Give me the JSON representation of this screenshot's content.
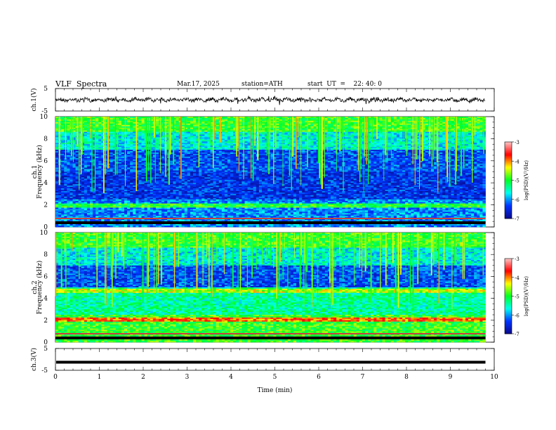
{
  "header": {
    "title": "VLF  Spectra",
    "date": "Mar.17, 2025",
    "station": "station=ATH",
    "start": "start  UT  =    22: 40: 0"
  },
  "chart_data": [
    {
      "type": "line",
      "ylabel": "ch.1(V)",
      "ylim": [
        -5,
        5
      ],
      "yticks": [
        "5",
        "-5"
      ],
      "xlim": [
        0,
        10
      ],
      "x_extent": [
        0,
        9.8
      ],
      "level": 0,
      "color": "#000000"
    },
    {
      "type": "heatmap",
      "ylabel_top": "ch.1",
      "ylabel": "Frequency  (kHz)",
      "ylim": [
        0,
        10
      ],
      "yticks": [
        "0",
        "2",
        "4",
        "6",
        "8",
        "10"
      ],
      "xlim": [
        0,
        10
      ],
      "x_extent": [
        0,
        9.8
      ],
      "colorbar": {
        "label": "log(PSD)(V²/Hz)",
        "range": [
          -7,
          -3
        ],
        "ticks": [
          "-3",
          "-4",
          "-5",
          "-6",
          "-7"
        ]
      }
    },
    {
      "type": "heatmap",
      "ylabel_top": "ch.2",
      "ylabel": "Frequency  (kHz)",
      "ylim": [
        0,
        10
      ],
      "yticks": [
        "0",
        "2",
        "4",
        "6",
        "8",
        "10"
      ],
      "xlim": [
        0,
        10
      ],
      "x_extent": [
        0,
        9.8
      ],
      "colorbar": {
        "label": "log(PSD)(V²/Hz)",
        "range": [
          -7,
          -3
        ],
        "ticks": [
          "-3",
          "-4",
          "-5",
          "-6",
          "-7"
        ]
      }
    },
    {
      "type": "line",
      "ylabel": "ch.3(V)",
      "ylim": [
        -5,
        5
      ],
      "yticks": [
        "5",
        "-5"
      ],
      "xlim": [
        0,
        10
      ],
      "x_extent": [
        0,
        9.8
      ],
      "level": -1.3,
      "color": "#000000"
    }
  ],
  "xaxis": {
    "label": "Time  (min)",
    "ticks": [
      "0",
      "1",
      "2",
      "3",
      "4",
      "5",
      "6",
      "7",
      "8",
      "9",
      "10"
    ]
  },
  "colors": {
    "colormap": [
      "#0a0a8a",
      "#0033ff",
      "#00ffee",
      "#00ff22",
      "#ffff00",
      "#ff0000",
      "#ffc8c8"
    ]
  }
}
